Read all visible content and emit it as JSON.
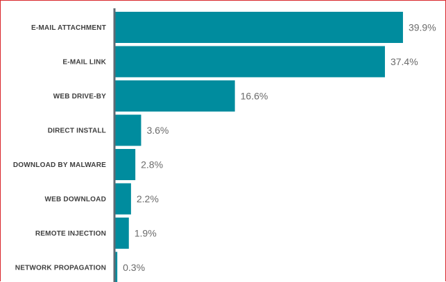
{
  "chart_data": {
    "type": "bar",
    "orientation": "horizontal",
    "categories": [
      "E-MAIL ATTACHMENT",
      "E-MAIL LINK",
      "WEB DRIVE-BY",
      "DIRECT INSTALL",
      "DOWNLOAD BY MALWARE",
      "WEB DOWNLOAD",
      "REMOTE INJECTION",
      "NETWORK PROPAGATION"
    ],
    "values": [
      39.9,
      37.4,
      16.6,
      3.6,
      2.8,
      2.2,
      1.9,
      0.3
    ],
    "value_labels": [
      "39.9%",
      "37.4%",
      "16.6%",
      "3.6%",
      "2.8%",
      "2.2%",
      "1.9%",
      "0.3%"
    ],
    "xlim": [
      0,
      40
    ],
    "grid": false,
    "colors": {
      "bar": "#008c9e",
      "axis": "#5f6b74",
      "frame": "#d9262b"
    }
  }
}
